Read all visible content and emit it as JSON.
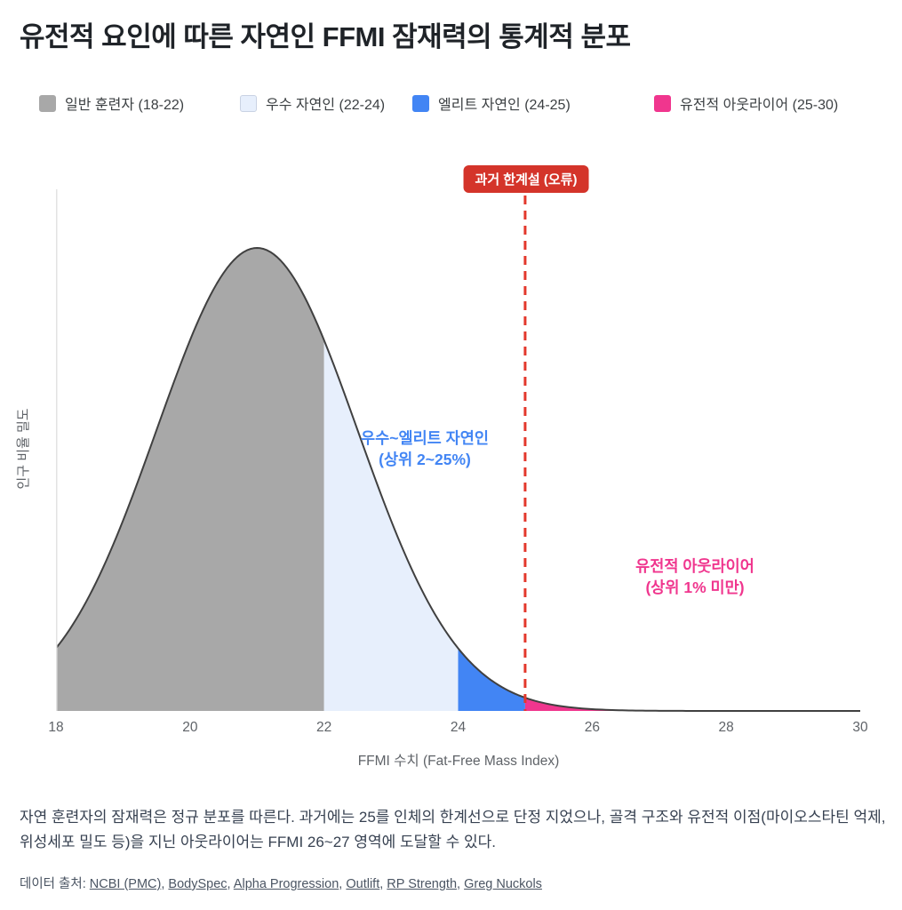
{
  "title": "유전적 요인에 따른 자연인 FFMI 잠재력의 통계적 분포",
  "legend": {
    "items": [
      {
        "label": "일반 훈련자 (18-22)",
        "color": "#a8a8a8",
        "border": "#a8a8a8"
      },
      {
        "label": "우수 자연인 (22-24)",
        "color": "#e7effc",
        "border": "#c9d2e3"
      },
      {
        "label": "엘리트 자연인 (24-25)",
        "color": "#4285f4",
        "border": "#4285f4"
      },
      {
        "label": "유전적 아웃라이어 (25-30)",
        "color": "#f0368e",
        "border": "#f0368e"
      }
    ]
  },
  "badge": {
    "label": "과거 한계설 (오류)",
    "bg_color": "#d4342a",
    "text_color": "#ffffff"
  },
  "annotations": {
    "elite": {
      "line1": "우수~엘리트 자연인",
      "line2": "(상위 2~25%)",
      "color": "#4285f4"
    },
    "outlier": {
      "line1": "유전적 아웃라이어",
      "line2": "(상위 1% 미만)",
      "color": "#f0368e"
    }
  },
  "chart_data": {
    "type": "area",
    "title": "유전적 요인에 따른 자연인 FFMI 잠재력의 통계적 분포",
    "xlabel": "FFMI 수치 (Fat-Free Mass Index)",
    "ylabel": "인구 비율 밀도",
    "xlim": [
      18,
      30
    ],
    "x_ticks": [
      18,
      20,
      22,
      24,
      26,
      28,
      30
    ],
    "grid": false,
    "legend_position": "top",
    "distribution": {
      "shape": "normal",
      "mean": 21,
      "sigma": 1.5
    },
    "regions": [
      {
        "label": "일반 훈련자",
        "range": [
          18,
          22
        ],
        "color": "#a8a8a8"
      },
      {
        "label": "우수 자연인",
        "range": [
          22,
          24
        ],
        "color": "#e7effc"
      },
      {
        "label": "엘리트 자연인",
        "range": [
          24,
          25
        ],
        "color": "#4285f4"
      },
      {
        "label": "유전적 아웃라이어",
        "range": [
          25,
          30
        ],
        "color": "#f0368e"
      }
    ],
    "limit_line": {
      "x": 25,
      "style": "dashed",
      "color": "#e3382c",
      "label": "과거 한계설 (오류)"
    },
    "curve_stroke_color": "#404040",
    "axis_line_color": "#e3e3e3"
  },
  "description": "자연 훈련자의 잠재력은 정규 분포를 따른다. 과거에는 25를 인체의 한계선으로 단정 지었으나, 골격 구조와 유전적 이점(마이오스타틴 억제, 위성세포 밀도 등)을 지닌 아웃라이어는 FFMI 26~27 영역에 도달할 수 있다.",
  "sources": {
    "prefix": "데이터 출처: ",
    "separator": ", ",
    "links": [
      "NCBI (PMC)",
      "BodySpec",
      "Alpha Progression",
      "Outlift",
      "RP Strength",
      "Greg Nuckols"
    ]
  }
}
